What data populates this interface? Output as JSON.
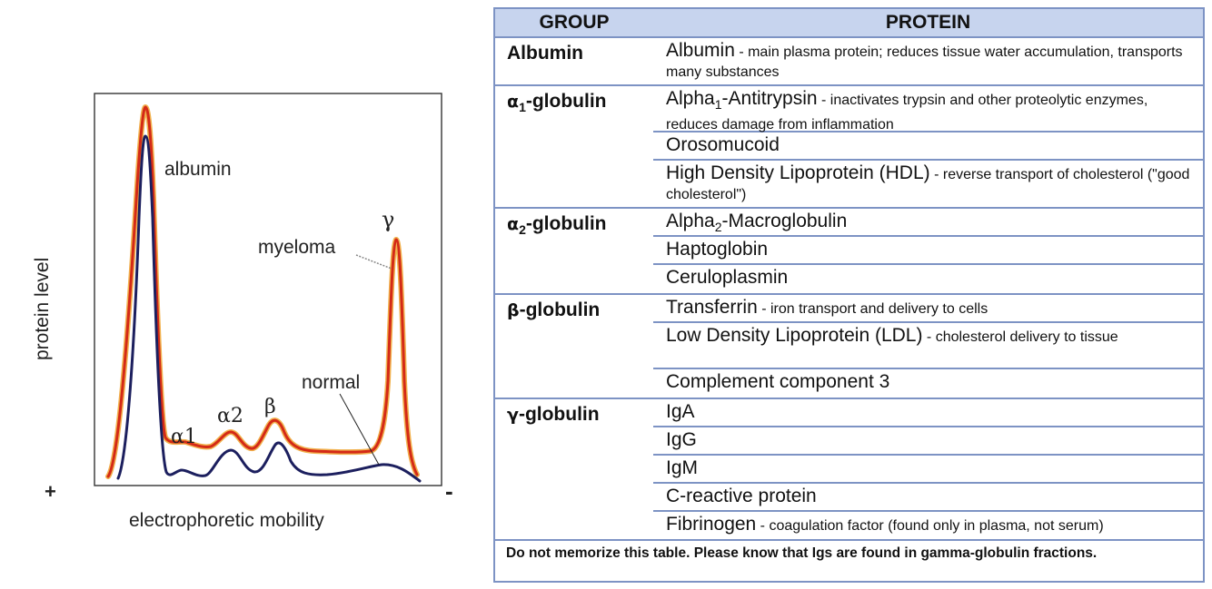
{
  "figure": {
    "y_axis_label": "protein level",
    "x_axis_label": "electrophoretic mobility",
    "plus_sign": "+",
    "minus_sign": "-",
    "peak_labels": {
      "albumin": "albumin",
      "alpha1": "α1",
      "alpha2": "α2",
      "beta": "β",
      "gamma": "γ"
    },
    "curve_labels": {
      "myeloma": "myeloma",
      "normal": "normal"
    },
    "colors": {
      "myeloma_curve": "#d42a17",
      "myeloma_glow": "#f0a83a",
      "normal_curve": "#1c1f5e"
    }
  },
  "table": {
    "headers": {
      "group": "GROUP",
      "protein": "PROTEIN"
    },
    "groups": [
      {
        "name": "Albumin",
        "proteins": [
          {
            "name": "Albumin",
            "desc": " - main plasma protein; reduces tissue water accumulation, transports many substances"
          }
        ]
      },
      {
        "name_greek": "α",
        "name_sub": "1",
        "name_rest": "-globulin",
        "proteins": [
          {
            "name_pre": "Alpha",
            "name_sub": "1",
            "name_post": "-Antitrypsin",
            "desc": " - inactivates trypsin and other proteolytic enzymes, reduces damage from inflammation"
          },
          {
            "name": "Orosomucoid",
            "desc": ""
          },
          {
            "name": "High Density Lipoprotein (HDL)",
            "desc": " - reverse transport of cholesterol (\"good cholesterol\")"
          }
        ]
      },
      {
        "name_greek": "α",
        "name_sub": "2",
        "name_rest": "-globulin",
        "proteins": [
          {
            "name_pre": "Alpha",
            "name_sub": "2",
            "name_post": "-Macroglobulin",
            "desc": ""
          },
          {
            "name": "Haptoglobin",
            "desc": ""
          },
          {
            "name": "Ceruloplasmin",
            "desc": ""
          }
        ]
      },
      {
        "name_greek": "β",
        "name_rest": "-globulin",
        "proteins": [
          {
            "name": "Transferrin",
            "desc": " - iron transport and delivery to cells"
          },
          {
            "name": "Low Density Lipoprotein (LDL)",
            "desc": " - cholesterol delivery to tissue"
          },
          {
            "name": "Complement component 3",
            "desc": ""
          }
        ]
      },
      {
        "name_greek": "γ",
        "name_rest": "-globulin",
        "proteins": [
          {
            "name": "IgA",
            "desc": ""
          },
          {
            "name": "IgG",
            "desc": ""
          },
          {
            "name": "IgM",
            "desc": ""
          },
          {
            "name": "C-reactive protein",
            "desc": ""
          },
          {
            "name": "Fibrinogen",
            "desc": " - coagulation factor (found only in plasma, not serum)"
          }
        ]
      }
    ],
    "note": "Do not memorize this table.  Please know that Igs are found in gamma-globulin fractions."
  }
}
